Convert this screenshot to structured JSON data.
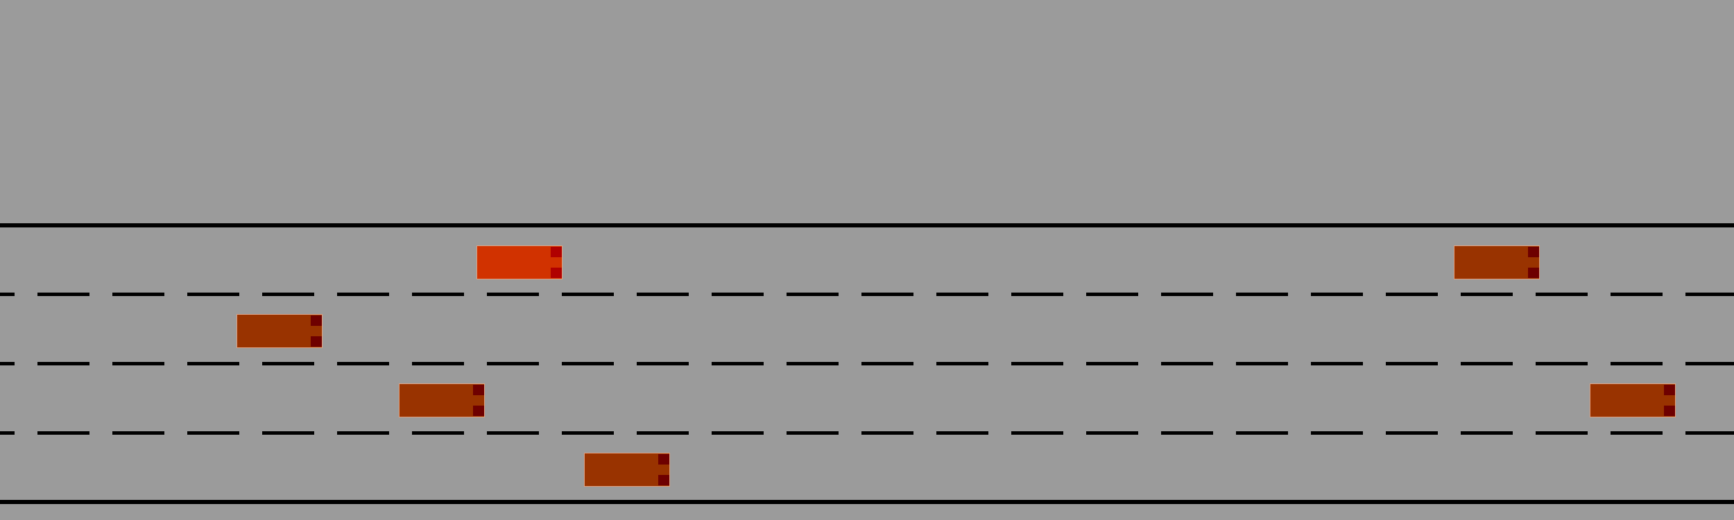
{
  "colors": {
    "background": "#9b9b9b",
    "road_line": "#000000",
    "player_car": "#d13200",
    "traffic_car": "#993300",
    "player_light": "#b00000",
    "traffic_light": "#6e0000"
  },
  "road": {
    "lane_count": 4,
    "lane_line_style": "dashed",
    "edge_line_style": "solid"
  },
  "cars": [
    {
      "name": "player-car",
      "lane": 1,
      "role": "player",
      "heading": "right"
    },
    {
      "name": "traffic-car-1",
      "lane": 1,
      "role": "traffic",
      "heading": "right"
    },
    {
      "name": "traffic-car-2",
      "lane": 2,
      "role": "traffic",
      "heading": "right"
    },
    {
      "name": "traffic-car-3",
      "lane": 3,
      "role": "traffic",
      "heading": "right"
    },
    {
      "name": "traffic-car-4",
      "lane": 3,
      "role": "traffic",
      "heading": "right"
    },
    {
      "name": "traffic-car-5",
      "lane": 4,
      "role": "traffic",
      "heading": "right"
    }
  ]
}
